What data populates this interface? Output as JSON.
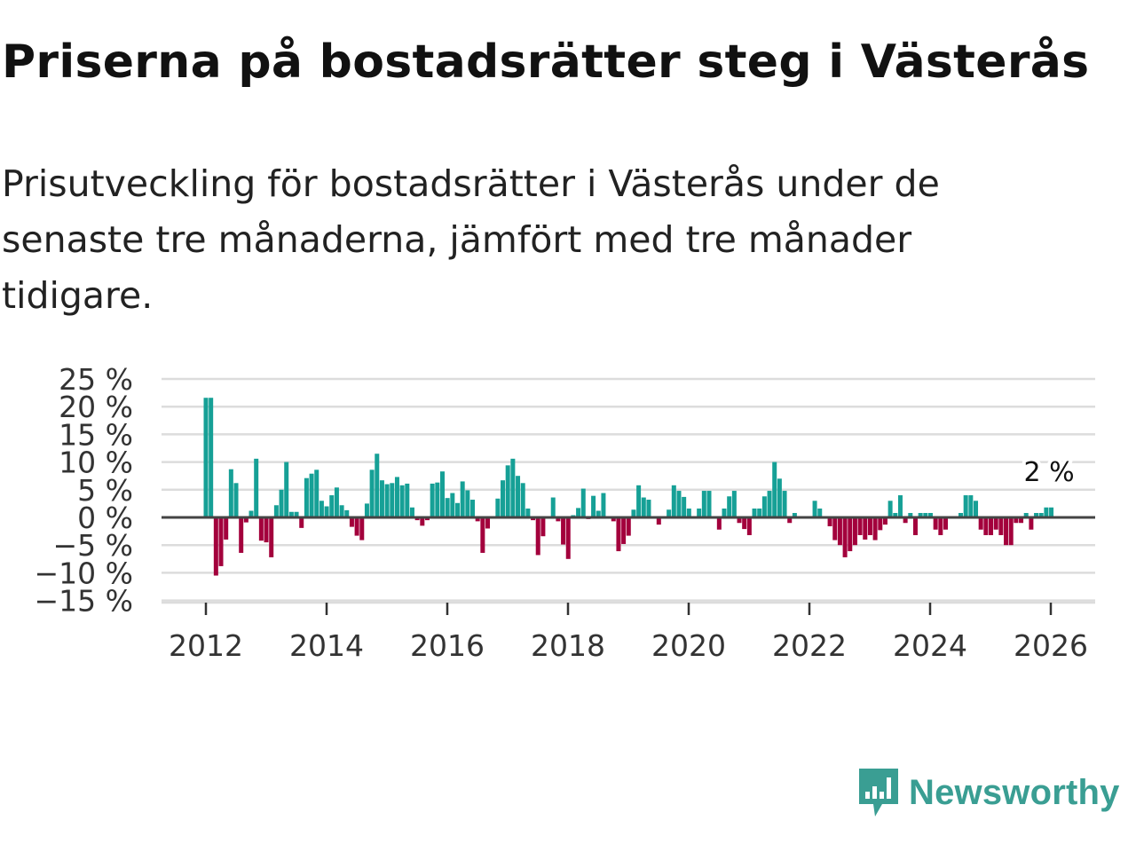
{
  "header": {
    "title": "Priserna på bostadsrätter steg i Västerås",
    "subtitle": "Prisutveckling för bostadsrätter i Västerås under de senaste tre månaderna, jämfört med tre månader tidigare."
  },
  "brand": {
    "name": "Newsworthy",
    "color": "#3a9e93"
  },
  "colors": {
    "positive": "#16a096",
    "negative": "#a3003c"
  },
  "chart_data": {
    "type": "bar",
    "title": "",
    "xlabel": "",
    "ylabel": "",
    "x_start": "2012-01",
    "frequency": "monthly",
    "ylim": [
      -15,
      25
    ],
    "yticks": [
      25,
      20,
      15,
      10,
      5,
      0,
      -5,
      -10,
      -15
    ],
    "ytick_labels": [
      "25 %",
      "20 %",
      "15 %",
      "10 %",
      "5 %",
      "0 %",
      "−5 %",
      "−10 %",
      "−15 %"
    ],
    "xticks": [
      "2012",
      "2014",
      "2016",
      "2018",
      "2020",
      "2022",
      "2024",
      "2026"
    ],
    "grid": true,
    "annotation": {
      "label": "2 %",
      "target": "2026-01"
    },
    "values": [
      21.6,
      21.6,
      -10.5,
      -8.8,
      -4,
      8.7,
      6.2,
      -6.4,
      -0.9,
      1.2,
      10.6,
      -4.2,
      -4.5,
      -7.2,
      2.2,
      5,
      10,
      1,
      1,
      -1.9,
      7.1,
      7.9,
      8.6,
      3,
      2,
      4,
      5.4,
      2.2,
      1.3,
      -1.7,
      -3.3,
      -4.1,
      2.5,
      8.6,
      11.5,
      6.7,
      6,
      6.2,
      7.3,
      5.8,
      6.1,
      1.8,
      -0.5,
      -1.5,
      -0.5,
      6.1,
      6.3,
      8.3,
      3.5,
      4.4,
      2.6,
      6.5,
      4.9,
      3.2,
      -0.7,
      -6.4,
      -2,
      0,
      3.4,
      6.7,
      9.4,
      10.6,
      7.5,
      6.2,
      1.6,
      -0.5,
      -6.8,
      -3.4,
      0,
      3.6,
      -0.7,
      -4.9,
      -7.5,
      0.4,
      1.7,
      5.2,
      -0.3,
      3.9,
      1.2,
      4.4,
      0,
      -0.7,
      -6.1,
      -4.8,
      -3.3,
      1.4,
      5.8,
      3.6,
      3.2,
      0,
      -1.3,
      0,
      1.4,
      5.8,
      4.8,
      3.7,
      1.6,
      0,
      1.6,
      4.8,
      4.8,
      0,
      -2.2,
      1.6,
      3.8,
      4.8,
      -1,
      -2.1,
      -3.2,
      1.6,
      1.6,
      3.8,
      4.8,
      10,
      7,
      4.8,
      -1,
      0.8,
      0,
      0,
      0,
      3,
      1.6,
      0,
      -1.6,
      -4.1,
      -5,
      -7.2,
      -6.1,
      -5,
      -3.2,
      -4,
      -3.2,
      -4.1,
      -2.3,
      -1.3,
      3,
      0.8,
      4,
      -1,
      0.8,
      -3.2,
      0.8,
      0.8,
      0.8,
      -2.2,
      -3.2,
      -2.2,
      0,
      0,
      0.8,
      4,
      4,
      3,
      -2.2,
      -3.2,
      -3.2,
      -2.2,
      -3.2,
      -5,
      -5,
      -1,
      -1,
      0.8,
      -2.2,
      0.8,
      0.8,
      1.8,
      1.8
    ]
  }
}
